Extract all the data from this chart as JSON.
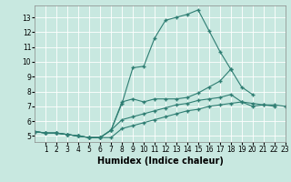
{
  "xlabel": "Humidex (Indice chaleur)",
  "bg_color": "#c8e8e0",
  "grid_color": "#b0d8d0",
  "line_color": "#2e7d72",
  "xlim": [
    0,
    23
  ],
  "ylim": [
    4.6,
    13.8
  ],
  "xticks": [
    1,
    2,
    3,
    4,
    5,
    6,
    7,
    8,
    9,
    10,
    11,
    12,
    13,
    14,
    15,
    16,
    17,
    18,
    19,
    20,
    21,
    22,
    23
  ],
  "yticks": [
    5,
    6,
    7,
    8,
    9,
    10,
    11,
    12,
    13
  ],
  "lines": [
    {
      "x": [
        0,
        1,
        2,
        3,
        4,
        5,
        6,
        7,
        8,
        9,
        10,
        11,
        12,
        13,
        14,
        15,
        16,
        17,
        18
      ],
      "y": [
        5.3,
        5.2,
        5.2,
        5.1,
        5.0,
        4.9,
        4.9,
        5.4,
        7.2,
        9.6,
        9.7,
        11.6,
        12.8,
        13.0,
        13.2,
        13.5,
        12.1,
        10.7,
        9.5
      ]
    },
    {
      "x": [
        0,
        1,
        2,
        3,
        4,
        5,
        6,
        7,
        8,
        9,
        10,
        11,
        12,
        13,
        14,
        15,
        16,
        17,
        18,
        19,
        20
      ],
      "y": [
        5.3,
        5.2,
        5.2,
        5.1,
        5.0,
        4.9,
        4.9,
        5.4,
        7.3,
        7.5,
        7.3,
        7.5,
        7.5,
        7.5,
        7.6,
        7.9,
        8.3,
        8.7,
        9.5,
        8.3,
        7.8
      ]
    },
    {
      "x": [
        0,
        1,
        2,
        3,
        4,
        5,
        6,
        7,
        8,
        9,
        10,
        11,
        12,
        13,
        14,
        15,
        16,
        17,
        18,
        19,
        20,
        21,
        22,
        23
      ],
      "y": [
        5.3,
        5.2,
        5.2,
        5.1,
        5.0,
        4.9,
        4.9,
        5.4,
        6.1,
        6.3,
        6.5,
        6.7,
        6.9,
        7.1,
        7.2,
        7.4,
        7.5,
        7.6,
        7.8,
        7.3,
        7.2,
        7.1,
        7.0,
        null
      ]
    },
    {
      "x": [
        0,
        1,
        2,
        3,
        4,
        5,
        6,
        7,
        8,
        9,
        10,
        11,
        12,
        13,
        14,
        15,
        16,
        17,
        18,
        19,
        20,
        21,
        22,
        23
      ],
      "y": [
        5.3,
        5.2,
        5.2,
        5.1,
        5.0,
        4.9,
        4.9,
        4.9,
        5.5,
        5.7,
        5.9,
        6.1,
        6.3,
        6.5,
        6.7,
        6.8,
        7.0,
        7.1,
        7.2,
        7.3,
        7.0,
        7.1,
        7.1,
        7.0
      ]
    }
  ],
  "figsize": [
    3.2,
    2.0
  ],
  "dpi": 100,
  "xlabel_fontsize": 7,
  "tick_fontsize": 5.5
}
